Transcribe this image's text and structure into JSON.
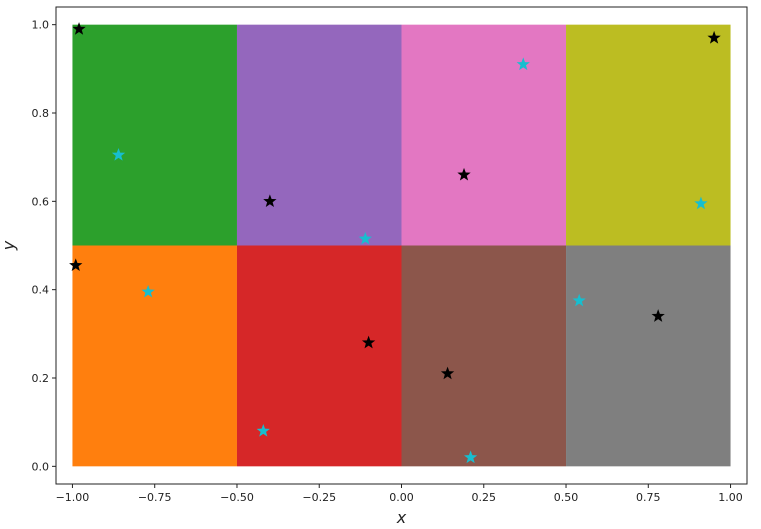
{
  "chart_data": {
    "type": "scatter",
    "title": "",
    "xlabel": "x",
    "ylabel": "y",
    "xlim": [
      -1.05,
      1.05
    ],
    "ylim": [
      -0.04,
      1.04
    ],
    "grid": false,
    "x_ticks": [
      -1.0,
      -0.75,
      -0.5,
      -0.25,
      0.0,
      0.25,
      0.5,
      0.75,
      1.0
    ],
    "x_tick_labels": [
      "−1.00",
      "−0.75",
      "−0.50",
      "−0.25",
      "0.00",
      "0.25",
      "0.50",
      "0.75",
      "1.00"
    ],
    "y_ticks": [
      0.0,
      0.2,
      0.4,
      0.6,
      0.8,
      1.0
    ],
    "y_tick_labels": [
      "0.0",
      "0.2",
      "0.4",
      "0.6",
      "0.8",
      "1.0"
    ],
    "regions": [
      {
        "x": [
          -1.0,
          -0.5
        ],
        "y": [
          0.5,
          1.0
        ],
        "color": "#2ca02c"
      },
      {
        "x": [
          -0.5,
          0.0
        ],
        "y": [
          0.5,
          1.0
        ],
        "color": "#9467bd"
      },
      {
        "x": [
          0.0,
          0.5
        ],
        "y": [
          0.5,
          1.0
        ],
        "color": "#e377c2"
      },
      {
        "x": [
          0.5,
          1.0
        ],
        "y": [
          0.5,
          1.0
        ],
        "color": "#bcbd22"
      },
      {
        "x": [
          -1.0,
          -0.5
        ],
        "y": [
          0.0,
          0.5
        ],
        "color": "#ff7f0e"
      },
      {
        "x": [
          -0.5,
          0.0
        ],
        "y": [
          0.0,
          0.5
        ],
        "color": "#d62728"
      },
      {
        "x": [
          0.0,
          0.5
        ],
        "y": [
          0.0,
          0.5
        ],
        "color": "#8c564b"
      },
      {
        "x": [
          0.5,
          1.0
        ],
        "y": [
          0.0,
          0.5
        ],
        "color": "#7f7f7f"
      }
    ],
    "series": [
      {
        "marker": "star",
        "color": "#000000",
        "points": [
          {
            "x": -0.98,
            "y": 0.99
          },
          {
            "x": -0.99,
            "y": 0.455
          },
          {
            "x": -0.4,
            "y": 0.6
          },
          {
            "x": -0.1,
            "y": 0.28
          },
          {
            "x": 0.19,
            "y": 0.66
          },
          {
            "x": 0.14,
            "y": 0.21
          },
          {
            "x": 0.95,
            "y": 0.97
          },
          {
            "x": 0.78,
            "y": 0.34
          }
        ]
      },
      {
        "marker": "star",
        "color": "#17becf",
        "points": [
          {
            "x": -0.86,
            "y": 0.705
          },
          {
            "x": -0.77,
            "y": 0.395
          },
          {
            "x": -0.42,
            "y": 0.08
          },
          {
            "x": -0.11,
            "y": 0.515
          },
          {
            "x": 0.37,
            "y": 0.91
          },
          {
            "x": 0.21,
            "y": 0.02
          },
          {
            "x": 0.91,
            "y": 0.595
          },
          {
            "x": 0.54,
            "y": 0.375
          }
        ]
      }
    ]
  }
}
